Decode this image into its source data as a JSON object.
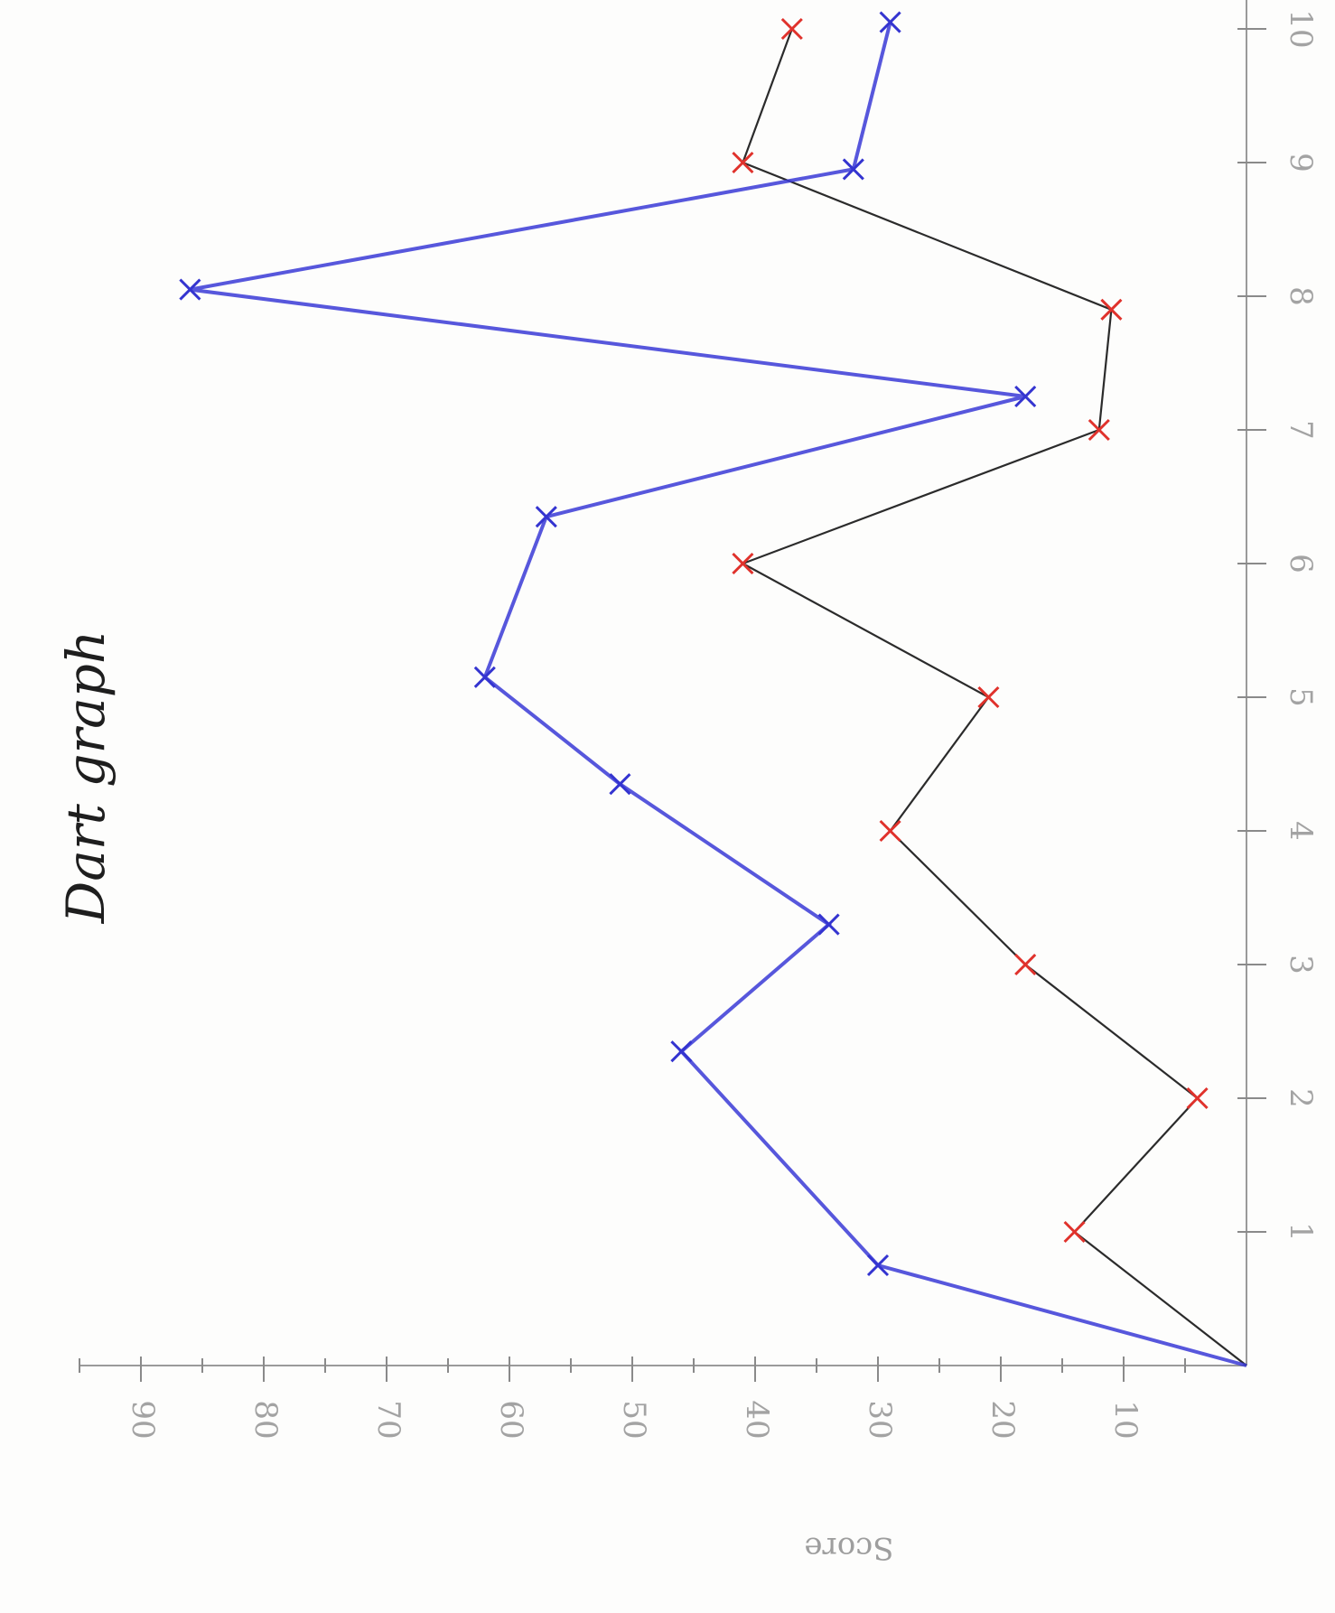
{
  "chart_data": {
    "type": "line",
    "title": "Dart graph",
    "xlabel": "",
    "ylabel": "Score",
    "orientation": "rotated-90-clockwise",
    "x_ticks": [
      "1",
      "2",
      "3",
      "4",
      "5",
      "6",
      "7",
      "8",
      "9",
      "10"
    ],
    "y_ticks": [
      "10",
      "20",
      "30",
      "40",
      "50",
      "60",
      "70",
      "80",
      "90"
    ],
    "xlim": [
      0,
      10.3
    ],
    "ylim": [
      0,
      90
    ],
    "grid": false,
    "legend": "none",
    "series": [
      {
        "color": "#2b2b2b",
        "marker_color": "#e0322c",
        "x": [
          0,
          1,
          2,
          3,
          4,
          5,
          6,
          7,
          7.9,
          9,
          10
        ],
        "y": [
          0,
          14,
          4,
          18,
          29,
          21,
          41,
          12,
          11,
          41,
          37
        ]
      },
      {
        "color": "#3a3ad6",
        "marker_color": "#3434d0",
        "x": [
          0,
          0.75,
          2.35,
          3.3,
          4.35,
          5.15,
          6.35,
          7.25,
          8.05,
          8.95,
          10.05
        ],
        "y": [
          0,
          30,
          46,
          34,
          51,
          62,
          57,
          18,
          86,
          32,
          29
        ]
      }
    ]
  }
}
